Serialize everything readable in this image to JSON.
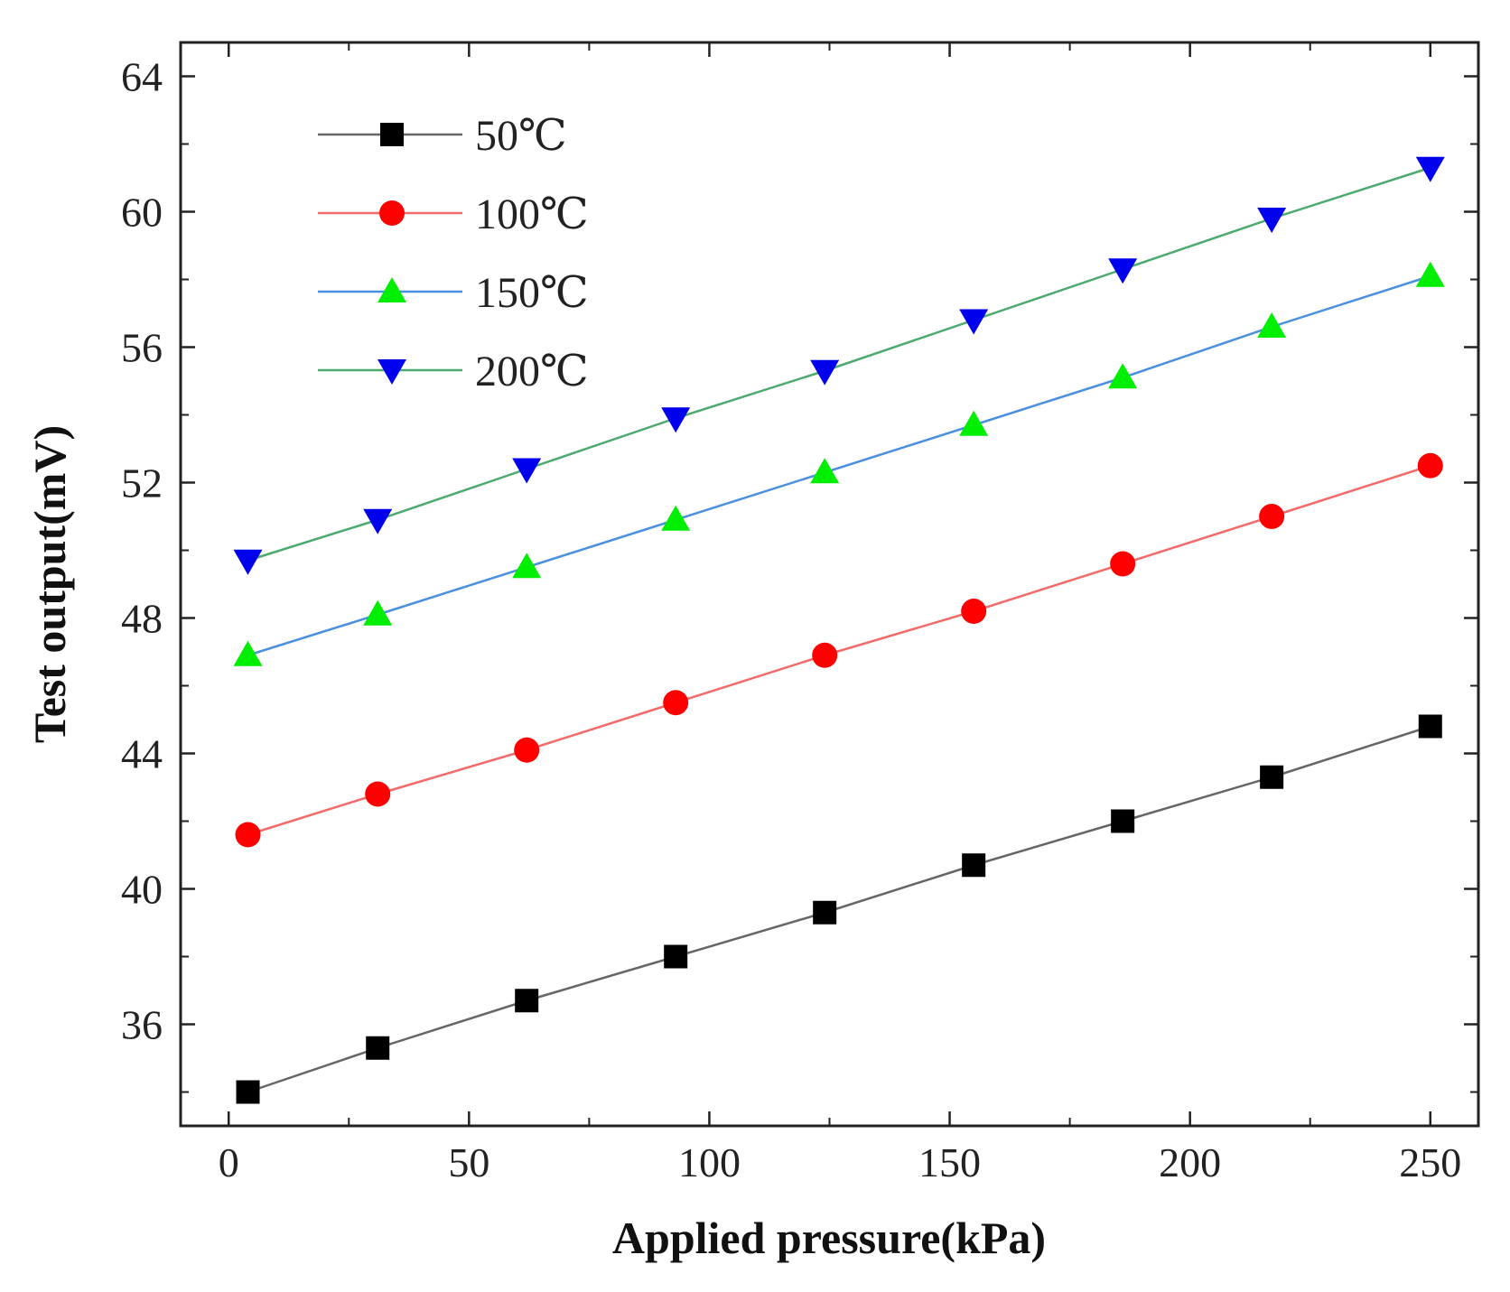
{
  "chart_data": {
    "type": "line",
    "title": "",
    "xlabel": "Applied pressure(kPa)",
    "ylabel": "Test output(mV)",
    "xlim": [
      -10,
      260
    ],
    "ylim": [
      33,
      65
    ],
    "xticks": [
      0,
      50,
      100,
      150,
      200,
      250
    ],
    "yticks": [
      36,
      40,
      44,
      48,
      52,
      56,
      60,
      64
    ],
    "x": [
      4,
      31,
      62,
      93,
      124,
      155,
      186,
      217,
      250
    ],
    "legend_position": "top-left",
    "series": [
      {
        "name": "50℃",
        "color": "#000000",
        "line_color": "#666666",
        "marker": "square",
        "values": [
          34.0,
          35.3,
          36.7,
          38.0,
          39.3,
          40.7,
          42.0,
          43.3,
          44.8
        ]
      },
      {
        "name": "100℃",
        "color": "#ff0000",
        "line_color": "#f26a6a",
        "marker": "circle",
        "values": [
          41.6,
          42.8,
          44.1,
          45.5,
          46.9,
          48.2,
          49.6,
          51.0,
          52.5
        ]
      },
      {
        "name": "150℃",
        "color": "#00ee00",
        "line_color": "#4a8fe0",
        "marker": "triangle-up",
        "values": [
          46.9,
          48.1,
          49.5,
          50.9,
          52.3,
          53.7,
          55.1,
          56.6,
          58.1
        ]
      },
      {
        "name": "200℃",
        "color": "#0000ee",
        "line_color": "#4caa6e",
        "marker": "triangle-down",
        "values": [
          49.7,
          50.9,
          52.4,
          53.9,
          55.3,
          56.8,
          58.3,
          59.8,
          61.3
        ]
      }
    ]
  }
}
